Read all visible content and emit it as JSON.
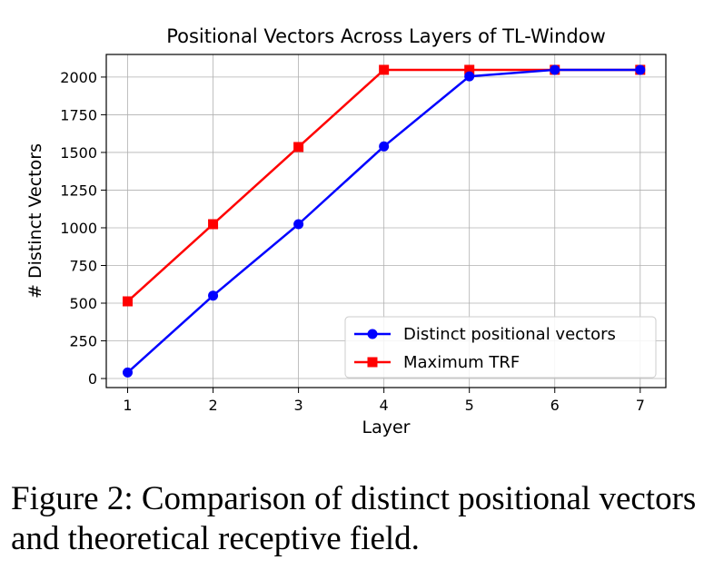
{
  "chart_data": {
    "type": "line",
    "title": "Positional Vectors Across Layers of TL-Window",
    "xlabel": "Layer",
    "ylabel": "# Distinct Vectors",
    "x": [
      1,
      2,
      3,
      4,
      5,
      6,
      7
    ],
    "xticks": [
      "1",
      "2",
      "3",
      "4",
      "5",
      "6",
      "7"
    ],
    "yticks": [
      0,
      250,
      500,
      750,
      1000,
      1250,
      1500,
      1750,
      2000
    ],
    "xlim": [
      0.75,
      7.3
    ],
    "ylim": [
      -60,
      2150
    ],
    "grid": true,
    "legend_position": "lower-right",
    "series": [
      {
        "name": "Distinct positional vectors",
        "values": [
          40,
          550,
          1024,
          1540,
          2005,
          2048,
          2048
        ],
        "color": "#0000ff",
        "marker": "circle"
      },
      {
        "name": "Maximum TRF",
        "values": [
          512,
          1024,
          1536,
          2048,
          2048,
          2048,
          2048
        ],
        "color": "#ff0000",
        "marker": "square"
      }
    ]
  },
  "caption": {
    "text": "Figure 2:  Comparison of distinct positional vectors and theoretical receptive field."
  }
}
